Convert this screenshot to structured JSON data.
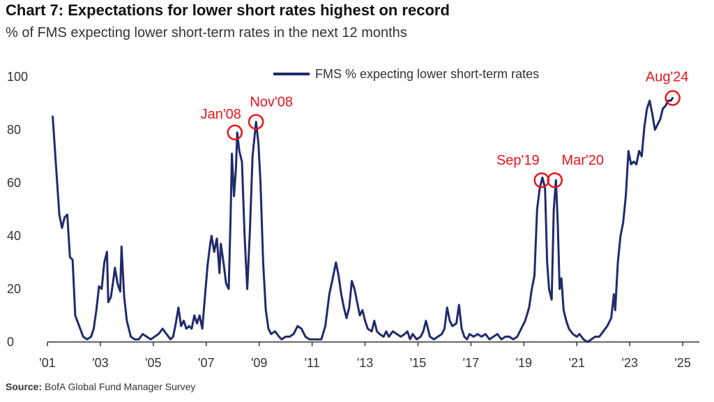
{
  "title": "Chart 7: Expectations for lower short rates highest on record",
  "subtitle": "% of FMS expecting lower short-term rates in the next 12 months",
  "source": {
    "label": "Source:",
    "text": "BofA Global Fund Manager Survey"
  },
  "colors": {
    "line": "#1f2b6b",
    "annotation": "#e8141b",
    "axis": "#333333"
  },
  "chart_data": {
    "type": "line",
    "title": "Chart 7: Expectations for lower short rates highest on record",
    "subtitle": "% of FMS expecting lower short-term rates in the next 12 months",
    "xlabel": "",
    "ylabel": "",
    "ylim": [
      0,
      100
    ],
    "xlim": [
      2001,
      2025.5
    ],
    "yticks": [
      0,
      20,
      40,
      60,
      80,
      100
    ],
    "xticks": [
      {
        "value": 2001,
        "label": "'01"
      },
      {
        "value": 2003,
        "label": "'03"
      },
      {
        "value": 2005,
        "label": "'05"
      },
      {
        "value": 2007,
        "label": "'07"
      },
      {
        "value": 2009,
        "label": "'09"
      },
      {
        "value": 2011,
        "label": "'11"
      },
      {
        "value": 2013,
        "label": "'13"
      },
      {
        "value": 2015,
        "label": "'15"
      },
      {
        "value": 2017,
        "label": "'17"
      },
      {
        "value": 2019,
        "label": "'19"
      },
      {
        "value": 2021,
        "label": "'21"
      },
      {
        "value": 2023,
        "label": "'23"
      },
      {
        "value": 2025,
        "label": "'25"
      }
    ],
    "grid": false,
    "legend": "top-center",
    "series": [
      {
        "name": "FMS % expecting lower short-term rates",
        "points": [
          [
            2001.2,
            85
          ],
          [
            2001.3,
            70
          ],
          [
            2001.45,
            48
          ],
          [
            2001.55,
            43
          ],
          [
            2001.65,
            47
          ],
          [
            2001.75,
            48
          ],
          [
            2001.85,
            32
          ],
          [
            2001.95,
            31
          ],
          [
            2002.05,
            10
          ],
          [
            2002.2,
            6
          ],
          [
            2002.35,
            2
          ],
          [
            2002.5,
            1
          ],
          [
            2002.65,
            2
          ],
          [
            2002.75,
            5
          ],
          [
            2002.85,
            12
          ],
          [
            2002.95,
            21
          ],
          [
            2003.05,
            20
          ],
          [
            2003.15,
            30
          ],
          [
            2003.25,
            34
          ],
          [
            2003.3,
            15
          ],
          [
            2003.4,
            17
          ],
          [
            2003.5,
            24
          ],
          [
            2003.55,
            28
          ],
          [
            2003.65,
            22
          ],
          [
            2003.75,
            19
          ],
          [
            2003.8,
            36
          ],
          [
            2003.9,
            17
          ],
          [
            2004.0,
            8
          ],
          [
            2004.15,
            2
          ],
          [
            2004.3,
            1
          ],
          [
            2004.45,
            1
          ],
          [
            2004.6,
            3
          ],
          [
            2004.75,
            2
          ],
          [
            2004.9,
            1
          ],
          [
            2005.05,
            2
          ],
          [
            2005.2,
            3
          ],
          [
            2005.35,
            5
          ],
          [
            2005.5,
            3
          ],
          [
            2005.65,
            1
          ],
          [
            2005.75,
            2
          ],
          [
            2005.85,
            7
          ],
          [
            2005.95,
            13
          ],
          [
            2006.05,
            6
          ],
          [
            2006.15,
            8
          ],
          [
            2006.25,
            5
          ],
          [
            2006.35,
            6
          ],
          [
            2006.45,
            5
          ],
          [
            2006.55,
            10
          ],
          [
            2006.65,
            7
          ],
          [
            2006.75,
            10
          ],
          [
            2006.85,
            5
          ],
          [
            2006.95,
            17
          ],
          [
            2007.05,
            29
          ],
          [
            2007.15,
            37
          ],
          [
            2007.2,
            40
          ],
          [
            2007.3,
            34
          ],
          [
            2007.4,
            39
          ],
          [
            2007.5,
            26
          ],
          [
            2007.55,
            37
          ],
          [
            2007.65,
            30
          ],
          [
            2007.75,
            22
          ],
          [
            2007.85,
            20
          ],
          [
            2007.92,
            47
          ],
          [
            2007.97,
            71
          ],
          [
            2008.05,
            55
          ],
          [
            2008.12,
            65
          ],
          [
            2008.17,
            79
          ],
          [
            2008.25,
            72
          ],
          [
            2008.35,
            68
          ],
          [
            2008.45,
            40
          ],
          [
            2008.55,
            20
          ],
          [
            2008.65,
            42
          ],
          [
            2008.75,
            70
          ],
          [
            2008.88,
            83
          ],
          [
            2008.97,
            75
          ],
          [
            2009.05,
            60
          ],
          [
            2009.15,
            30
          ],
          [
            2009.25,
            12
          ],
          [
            2009.35,
            5
          ],
          [
            2009.45,
            3
          ],
          [
            2009.6,
            4
          ],
          [
            2009.75,
            2
          ],
          [
            2009.85,
            1
          ],
          [
            2010.0,
            2
          ],
          [
            2010.15,
            2
          ],
          [
            2010.3,
            3
          ],
          [
            2010.45,
            6
          ],
          [
            2010.6,
            5
          ],
          [
            2010.75,
            2
          ],
          [
            2010.9,
            1
          ],
          [
            2011.05,
            1
          ],
          [
            2011.2,
            1
          ],
          [
            2011.35,
            1
          ],
          [
            2011.5,
            6
          ],
          [
            2011.65,
            18
          ],
          [
            2011.8,
            25
          ],
          [
            2011.9,
            30
          ],
          [
            2012.0,
            25
          ],
          [
            2012.1,
            18
          ],
          [
            2012.2,
            13
          ],
          [
            2012.3,
            9
          ],
          [
            2012.4,
            13
          ],
          [
            2012.5,
            23
          ],
          [
            2012.6,
            20
          ],
          [
            2012.7,
            15
          ],
          [
            2012.8,
            10
          ],
          [
            2012.9,
            12
          ],
          [
            2013.0,
            8
          ],
          [
            2013.1,
            5
          ],
          [
            2013.25,
            4
          ],
          [
            2013.35,
            8
          ],
          [
            2013.45,
            4
          ],
          [
            2013.55,
            3
          ],
          [
            2013.7,
            2
          ],
          [
            2013.8,
            4
          ],
          [
            2013.9,
            2
          ],
          [
            2014.05,
            4
          ],
          [
            2014.2,
            3
          ],
          [
            2014.35,
            2
          ],
          [
            2014.5,
            3
          ],
          [
            2014.6,
            4
          ],
          [
            2014.7,
            1
          ],
          [
            2014.8,
            3
          ],
          [
            2014.95,
            1
          ],
          [
            2015.1,
            2
          ],
          [
            2015.2,
            4
          ],
          [
            2015.3,
            8
          ],
          [
            2015.45,
            2
          ],
          [
            2015.6,
            1
          ],
          [
            2015.75,
            2
          ],
          [
            2015.9,
            3
          ],
          [
            2016.0,
            5
          ],
          [
            2016.1,
            13
          ],
          [
            2016.2,
            8
          ],
          [
            2016.3,
            6
          ],
          [
            2016.45,
            7
          ],
          [
            2016.55,
            14
          ],
          [
            2016.65,
            5
          ],
          [
            2016.75,
            2
          ],
          [
            2016.85,
            1
          ],
          [
            2016.95,
            3
          ],
          [
            2017.1,
            2
          ],
          [
            2017.25,
            3
          ],
          [
            2017.4,
            2
          ],
          [
            2017.55,
            3
          ],
          [
            2017.7,
            1
          ],
          [
            2017.85,
            2
          ],
          [
            2018.0,
            3
          ],
          [
            2018.15,
            1
          ],
          [
            2018.3,
            2
          ],
          [
            2018.45,
            2
          ],
          [
            2018.6,
            1
          ],
          [
            2018.75,
            2
          ],
          [
            2018.9,
            5
          ],
          [
            2019.05,
            8
          ],
          [
            2019.2,
            13
          ],
          [
            2019.3,
            20
          ],
          [
            2019.4,
            25
          ],
          [
            2019.5,
            50
          ],
          [
            2019.6,
            58
          ],
          [
            2019.7,
            62
          ],
          [
            2019.8,
            58
          ],
          [
            2019.88,
            30
          ],
          [
            2019.95,
            20
          ],
          [
            2020.05,
            16
          ],
          [
            2020.13,
            50
          ],
          [
            2020.21,
            61
          ],
          [
            2020.28,
            45
          ],
          [
            2020.35,
            20
          ],
          [
            2020.42,
            24
          ],
          [
            2020.5,
            12
          ],
          [
            2020.6,
            8
          ],
          [
            2020.7,
            5
          ],
          [
            2020.85,
            3
          ],
          [
            2021.0,
            2
          ],
          [
            2021.1,
            3
          ],
          [
            2021.25,
            1
          ],
          [
            2021.4,
            0
          ],
          [
            2021.55,
            1
          ],
          [
            2021.7,
            2
          ],
          [
            2021.85,
            2
          ],
          [
            2022.0,
            4
          ],
          [
            2022.15,
            6
          ],
          [
            2022.3,
            9
          ],
          [
            2022.4,
            18
          ],
          [
            2022.45,
            12
          ],
          [
            2022.55,
            30
          ],
          [
            2022.65,
            40
          ],
          [
            2022.75,
            45
          ],
          [
            2022.85,
            55
          ],
          [
            2022.95,
            72
          ],
          [
            2023.05,
            67
          ],
          [
            2023.15,
            68
          ],
          [
            2023.25,
            67
          ],
          [
            2023.35,
            72
          ],
          [
            2023.45,
            70
          ],
          [
            2023.55,
            81
          ],
          [
            2023.65,
            88
          ],
          [
            2023.75,
            91
          ],
          [
            2023.85,
            86
          ],
          [
            2023.95,
            80
          ],
          [
            2024.05,
            82
          ],
          [
            2024.15,
            84
          ],
          [
            2024.25,
            88
          ],
          [
            2024.35,
            89
          ],
          [
            2024.45,
            91
          ],
          [
            2024.55,
            91
          ],
          [
            2024.62,
            92
          ]
        ]
      }
    ],
    "annotations": [
      {
        "label": "Jan'08",
        "x": 2008.08,
        "y": 79
      },
      {
        "label": "Nov'08",
        "x": 2008.88,
        "y": 83
      },
      {
        "label": "Sep'19",
        "x": 2019.67,
        "y": 61
      },
      {
        "label": "Mar'20",
        "x": 2020.17,
        "y": 61
      },
      {
        "label": "Aug'24",
        "x": 2024.62,
        "y": 92
      }
    ]
  }
}
